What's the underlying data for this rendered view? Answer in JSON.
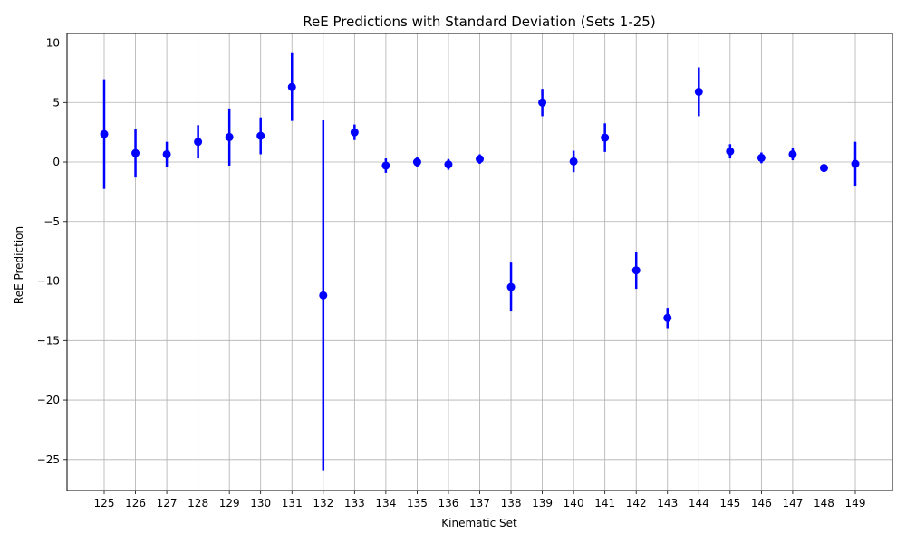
{
  "chart_data": {
    "type": "scatter",
    "title": "ReE Predictions with Standard Deviation (Sets 1-25)",
    "xlabel": "Kinematic Set",
    "ylabel": "ReE Prediction",
    "ylim": [
      -27.6,
      10.8
    ],
    "yticks": [
      10,
      5,
      0,
      -5,
      -10,
      -15,
      -20,
      -25
    ],
    "ytick_labels": [
      "10",
      "5",
      "0",
      "−5",
      "−10",
      "−15",
      "−20",
      "−25"
    ],
    "grid": true,
    "marker_color": "#0000ff",
    "error_color": "#0000ff",
    "grid_color": "#b0b0b0",
    "categories": [
      "125",
      "126",
      "127",
      "128",
      "129",
      "130",
      "131",
      "132",
      "133",
      "134",
      "135",
      "136",
      "137",
      "138",
      "139",
      "140",
      "141",
      "142",
      "143",
      "144",
      "145",
      "146",
      "147",
      "148",
      "149"
    ],
    "series": [
      {
        "values": [
          2.35,
          0.75,
          0.65,
          1.7,
          2.1,
          2.2,
          6.3,
          -11.2,
          2.5,
          -0.3,
          0.0,
          -0.2,
          0.25,
          -10.5,
          5.0,
          0.05,
          2.05,
          -9.1,
          -13.1,
          5.9,
          0.9,
          0.35,
          0.65,
          -0.5,
          -0.15
        ],
        "errors": [
          4.6,
          2.05,
          1.05,
          1.4,
          2.4,
          1.55,
          2.85,
          14.7,
          0.65,
          0.6,
          0.45,
          0.45,
          0.4,
          2.05,
          1.15,
          0.9,
          1.2,
          1.55,
          0.85,
          2.05,
          0.6,
          0.45,
          0.5,
          0.25,
          1.85
        ]
      }
    ]
  }
}
